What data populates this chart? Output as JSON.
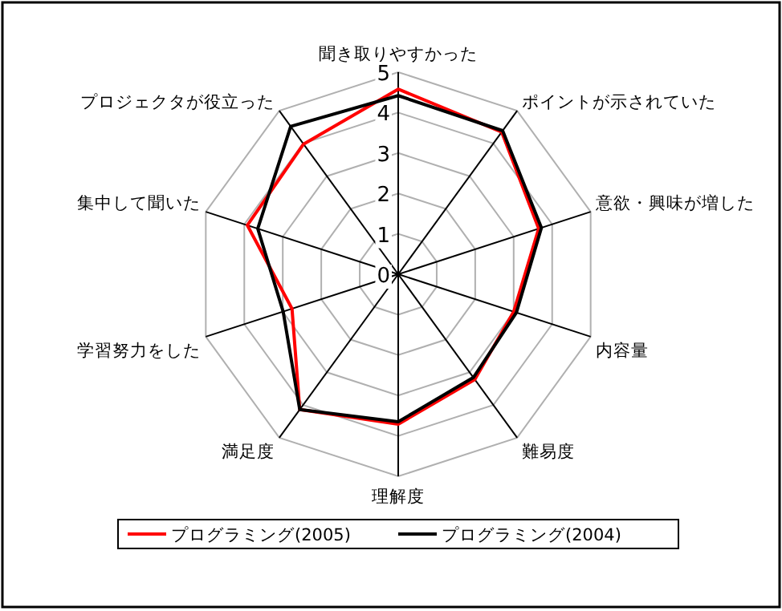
{
  "chart_data": {
    "type": "radar",
    "categories": [
      "聞き取りやすかった",
      "ポイントが示されていた",
      "意欲・興味が増した",
      "内容量",
      "難易度",
      "理解度",
      "満足度",
      "学習努力をした",
      "集中して聞いた",
      "プロジェクタが役立った"
    ],
    "series": [
      {
        "name": "プログラミング(2005)",
        "color": "#ff0000",
        "values": [
          4.58,
          4.35,
          3.65,
          3.0,
          3.22,
          3.71,
          4.14,
          2.76,
          3.92,
          3.98
        ]
      },
      {
        "name": "プログラミング(2004)",
        "color": "#000000",
        "values": [
          4.42,
          4.39,
          3.72,
          3.07,
          3.16,
          3.65,
          4.14,
          2.99,
          3.65,
          4.52
        ]
      }
    ],
    "ylim": [
      0,
      5
    ],
    "yticks": [
      0,
      1,
      2,
      3,
      4,
      5
    ],
    "legend": "bottom"
  }
}
